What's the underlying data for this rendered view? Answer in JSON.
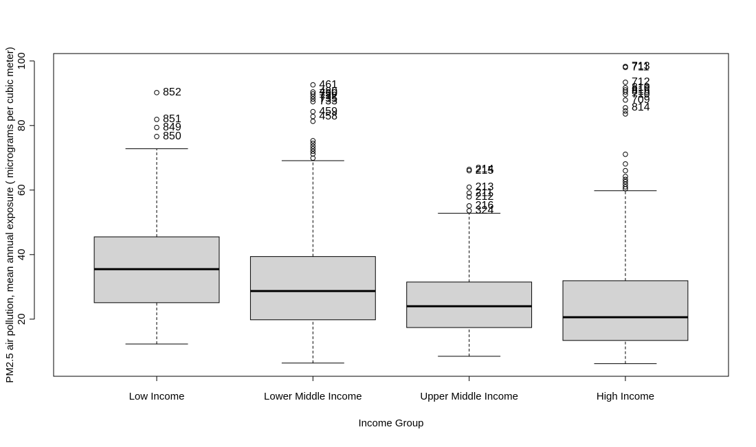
{
  "chart_data": {
    "type": "boxplot",
    "x_label": "Income Group",
    "y_label": "PM2.5 air pollution, mean annual exposure ( micrograms per cubic meter)",
    "categories": [
      "Low Income",
      "Lower Middle Income",
      "Upper Middle Income",
      "High Income"
    ],
    "ylim": [
      2.3,
      102.3
    ],
    "yticks": [
      20,
      40,
      60,
      80,
      100
    ],
    "box_color": "#d3d3d3",
    "boxes": [
      {
        "whisker_low": 12.3,
        "q1": 25.1,
        "median": 35.5,
        "q3": 45.5,
        "whisker_high": 72.8,
        "outliers": [
          90.2,
          81.9,
          79.4,
          76.6
        ],
        "outlier_labels": [
          "852",
          "851",
          "849",
          "850"
        ]
      },
      {
        "whisker_low": 6.4,
        "q1": 19.8,
        "median": 28.7,
        "q3": 39.4,
        "whisker_high": 69.1,
        "outliers": [
          92.6,
          90.4,
          89.8,
          89.0,
          88.2,
          87.4,
          84.3,
          82.8,
          81.3,
          75.3,
          74.5,
          73.6,
          72.8,
          72.0,
          71.2,
          69.9
        ],
        "outlier_labels": [
          "461",
          "480",
          "730",
          "732",
          "735",
          "733",
          "459",
          "458",
          null,
          null,
          null,
          null,
          null,
          null,
          null,
          null
        ]
      },
      {
        "whisker_low": 8.5,
        "q1": 17.4,
        "median": 24.0,
        "q3": 31.5,
        "whisker_high": 52.8,
        "outliers": [
          66.4,
          66.0,
          60.9,
          59.1,
          57.9,
          55.1,
          53.6
        ],
        "outlier_labels": [
          "214",
          "215",
          "213",
          "211",
          "212",
          "216",
          "324"
        ]
      },
      {
        "whisker_low": 6.2,
        "q1": 13.4,
        "median": 20.6,
        "q3": 31.9,
        "whisker_high": 59.8,
        "outliers": [
          98.3,
          98.0,
          93.4,
          91.7,
          91.0,
          90.4,
          89.6,
          87.9,
          85.5,
          84.5,
          83.6,
          71.1,
          68.1,
          66.0,
          64.2,
          63.3,
          62.6,
          61.8,
          61.0,
          60.4
        ],
        "outlier_labels": [
          "713",
          "711",
          "712",
          "810",
          "816",
          "815",
          "710",
          "709",
          "814",
          null,
          null,
          null,
          null,
          null,
          null,
          null,
          null,
          null,
          null,
          null
        ]
      }
    ]
  }
}
